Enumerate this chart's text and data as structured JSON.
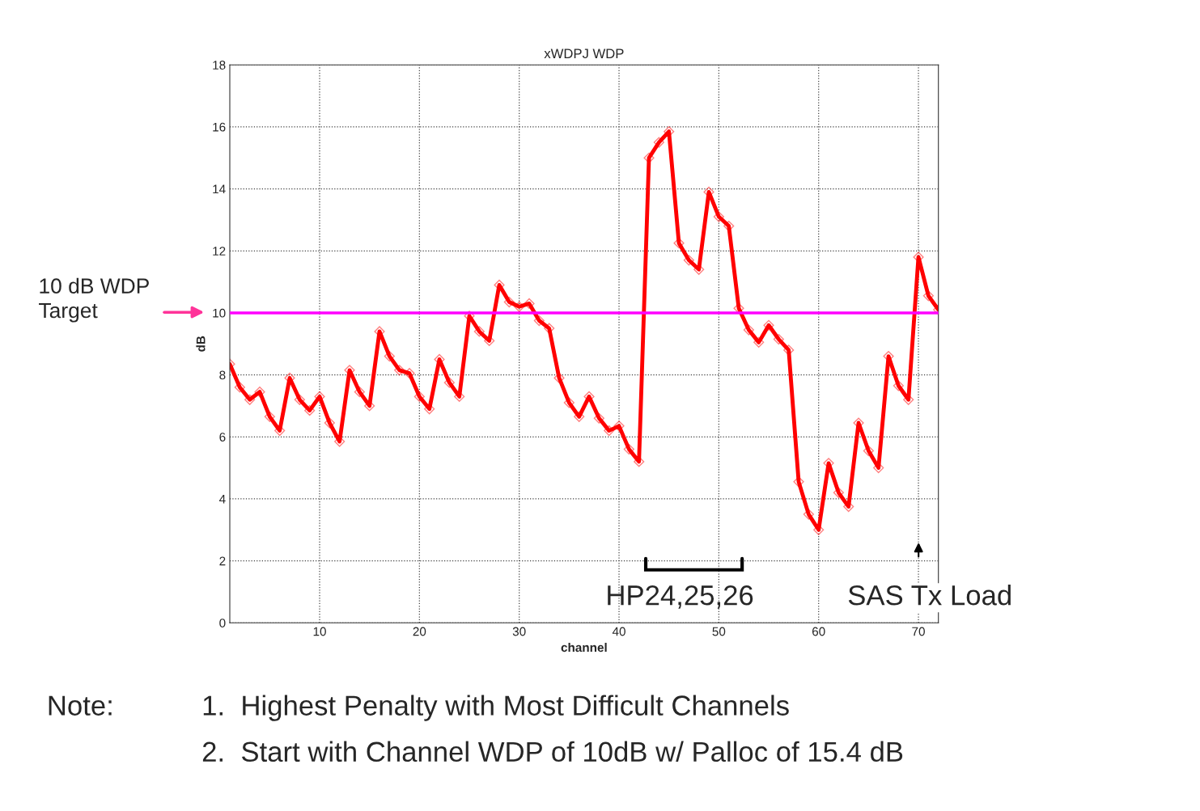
{
  "chart_data": {
    "type": "line",
    "title": "xWDPJ WDP",
    "xlabel": "channel",
    "ylabel": "dB",
    "x": [
      1,
      2,
      3,
      4,
      5,
      6,
      7,
      8,
      9,
      10,
      11,
      12,
      13,
      14,
      15,
      16,
      17,
      18,
      19,
      20,
      21,
      22,
      23,
      24,
      25,
      26,
      27,
      28,
      29,
      30,
      31,
      32,
      33,
      34,
      35,
      36,
      37,
      38,
      39,
      40,
      41,
      42,
      43,
      44,
      45,
      46,
      47,
      48,
      49,
      50,
      51,
      52,
      53,
      54,
      55,
      56,
      57,
      58,
      59,
      60,
      61,
      62,
      63,
      64,
      65,
      66,
      67,
      68,
      69,
      70,
      71,
      72
    ],
    "series": [
      {
        "color": "#ff0000",
        "values": [
          8.35,
          7.6,
          7.2,
          7.45,
          6.65,
          6.2,
          7.9,
          7.2,
          6.85,
          7.3,
          6.45,
          5.85,
          8.15,
          7.45,
          7.0,
          9.4,
          8.6,
          8.15,
          8.05,
          7.3,
          6.9,
          8.5,
          7.75,
          7.3,
          9.9,
          9.4,
          9.1,
          10.9,
          10.35,
          10.2,
          10.3,
          9.75,
          9.5,
          7.9,
          7.1,
          6.65,
          7.3,
          6.6,
          6.2,
          6.35,
          5.6,
          5.2,
          15.0,
          15.5,
          15.85,
          12.25,
          11.7,
          11.4,
          13.9,
          13.1,
          12.8,
          10.15,
          9.45,
          9.05,
          9.6,
          9.15,
          8.8,
          4.55,
          3.5,
          3.0,
          5.15,
          4.2,
          3.75,
          6.45,
          5.55,
          5.0,
          8.6,
          7.65,
          7.2,
          11.8,
          10.55,
          10.1
        ]
      }
    ],
    "xlim": [
      1,
      72
    ],
    "ylim": [
      0,
      18
    ],
    "xticks": [
      10,
      20,
      30,
      40,
      50,
      60,
      70
    ],
    "yticks": [
      0,
      2,
      4,
      6,
      8,
      10,
      12,
      14,
      16,
      18
    ],
    "grid": true,
    "marker": "diamond",
    "line_style": "solid",
    "ref_lines": [
      {
        "axis": "y",
        "value": 10,
        "color": "#ff00ff"
      }
    ],
    "annotations": [
      "10 dB WDP\nTarget",
      "HP24,25,26",
      "SAS Tx Load",
      "Note:",
      "1.  Highest Penalty with Most Difficult Channels",
      "2.  Start with Channel WDP of 10dB w/ Palloc of 15.4 dB"
    ]
  }
}
